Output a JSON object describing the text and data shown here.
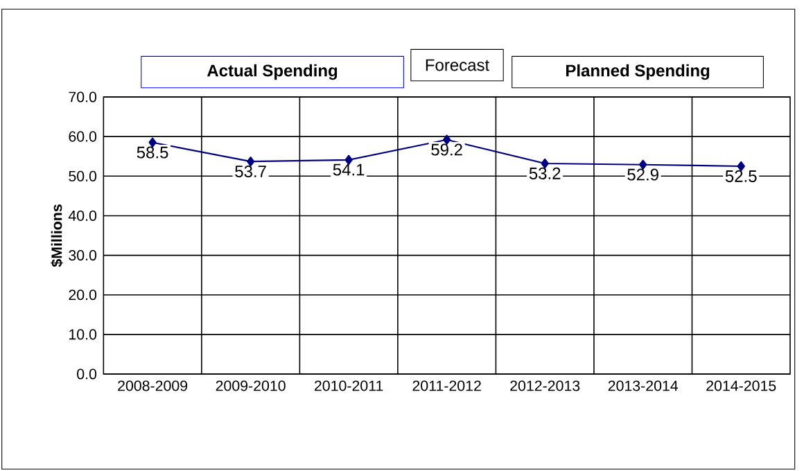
{
  "chart_data": {
    "type": "line",
    "ylabel": "$Millions",
    "categories": [
      "2008-2009",
      "2009-2010",
      "2010-2011",
      "2011-2012",
      "2012-2013",
      "2013-2014",
      "2014-2015"
    ],
    "values": [
      58.5,
      53.7,
      54.1,
      59.2,
      53.2,
      52.9,
      52.5
    ],
    "color": "#000080",
    "marker": "diamond",
    "data_labels": true,
    "grid": true,
    "ylim": [
      0,
      70
    ],
    "yticks": [
      {
        "value": 0,
        "label": "0.0"
      },
      {
        "value": 10,
        "label": "10.0"
      },
      {
        "value": 20,
        "label": "20.0"
      },
      {
        "value": 30,
        "label": "30.0"
      },
      {
        "value": 40,
        "label": "40.0"
      },
      {
        "value": 50,
        "label": "50.0"
      },
      {
        "value": 60,
        "label": "60.0"
      },
      {
        "value": 70,
        "label": "70.0"
      }
    ],
    "annotations": [
      "Actual Spending",
      "Forecast",
      "Planned Spending"
    ]
  }
}
